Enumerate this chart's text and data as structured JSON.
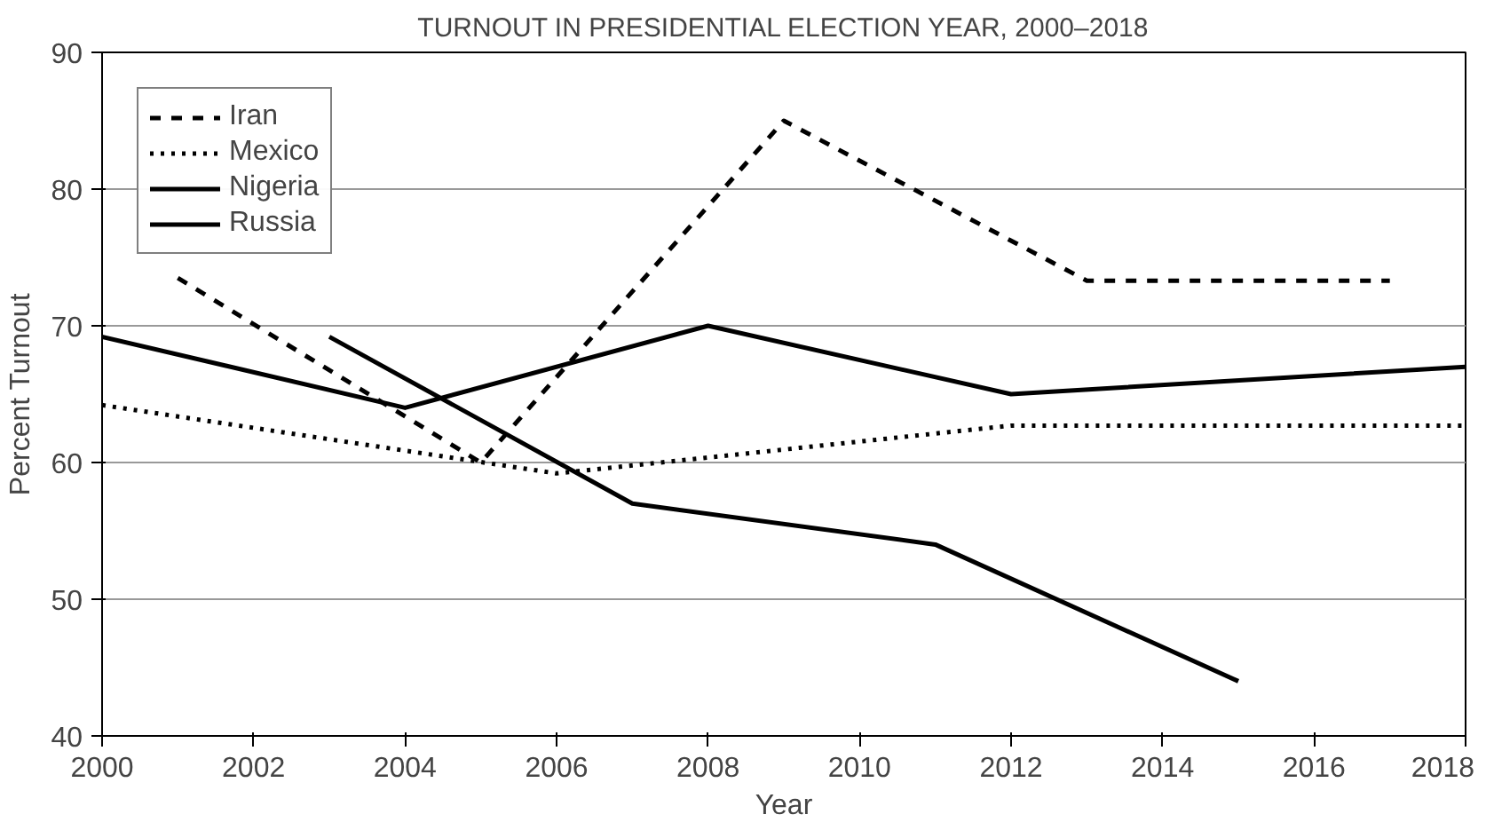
{
  "chart_data": {
    "type": "line",
    "title": "TURNOUT IN PRESIDENTIAL ELECTION YEAR, 2000–2018",
    "xlabel": "Year",
    "ylabel": "Percent Turnout",
    "xlim": [
      2000,
      2018
    ],
    "xticks": [
      2000,
      2002,
      2004,
      2006,
      2008,
      2010,
      2012,
      2014,
      2016,
      2018
    ],
    "ylim": [
      40,
      90
    ],
    "yticks": [
      40,
      50,
      60,
      70,
      80,
      90
    ],
    "grid": "y",
    "legend": "top left",
    "marker": "none",
    "series": [
      {
        "name": "Iran",
        "color": "#000000",
        "line_style": "dashed",
        "x": [
          2001,
          2005,
          2009,
          2013,
          2017
        ],
        "values": [
          73.5,
          60,
          85,
          73.3,
          73.3
        ]
      },
      {
        "name": "Mexico",
        "color": "#000000",
        "line_style": "dotted",
        "x": [
          2000,
          2006,
          2012,
          2018
        ],
        "values": [
          64.2,
          59.2,
          62.7,
          62.7
        ]
      },
      {
        "name": "Nigeria",
        "color": "#000000",
        "line_style": "solid",
        "x": [
          2003,
          2007,
          2011,
          2015
        ],
        "values": [
          69.2,
          57,
          54,
          44
        ]
      },
      {
        "name": "Russia",
        "color": "#000000",
        "line_style": "solid",
        "x": [
          2000,
          2004,
          2008,
          2012,
          2018
        ],
        "values": [
          69.2,
          64,
          70,
          65,
          67
        ]
      }
    ]
  }
}
